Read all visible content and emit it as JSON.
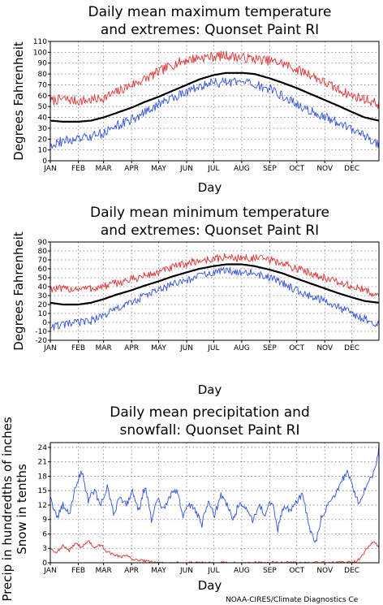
{
  "credit": "NOAA-CIRES/Climate Diagnostics Ce",
  "chart_data": [
    {
      "type": "line",
      "title_lines": [
        "Daily mean maximum temperature",
        "and extremes: Quonset Paint RI"
      ],
      "ylabel": "Degrees Fahrenheit",
      "xlabel": "Day",
      "x_ticks": [
        "JAN",
        "FEB",
        "MAR",
        "APR",
        "MAY",
        "JUN",
        "JUL",
        "AUG",
        "SEP",
        "OCT",
        "NOV",
        "DEC"
      ],
      "ylim": [
        0,
        110
      ],
      "y_ticks": [
        0,
        10,
        20,
        30,
        40,
        50,
        60,
        70,
        80,
        90,
        100,
        110
      ],
      "grid": true,
      "series": [
        {
          "color": "#e03030",
          "days": [
            1,
            15,
            32,
            46,
            60,
            74,
            91,
            105,
            121,
            135,
            152,
            166,
            182,
            196,
            213,
            227,
            244,
            258,
            274,
            288,
            305,
            319,
            335,
            349,
            365
          ],
          "values": [
            55,
            57,
            55,
            56,
            58,
            63,
            70,
            75,
            82,
            88,
            93,
            95,
            96,
            97,
            95,
            94,
            92,
            90,
            84,
            80,
            72,
            66,
            60,
            57,
            52
          ]
        },
        {
          "color": "#000000",
          "days": [
            1,
            15,
            32,
            46,
            60,
            74,
            91,
            105,
            121,
            135,
            152,
            166,
            182,
            196,
            213,
            227,
            244,
            258,
            274,
            288,
            305,
            319,
            335,
            349,
            365
          ],
          "values": [
            37,
            36,
            36,
            37,
            40,
            44,
            49,
            54,
            59,
            64,
            70,
            75,
            79,
            81,
            81,
            80,
            76,
            72,
            67,
            62,
            56,
            51,
            45,
            40,
            37
          ]
        },
        {
          "color": "#3050e0",
          "days": [
            1,
            15,
            32,
            46,
            60,
            74,
            91,
            105,
            121,
            135,
            152,
            166,
            182,
            196,
            213,
            227,
            244,
            258,
            274,
            288,
            305,
            319,
            335,
            349,
            365
          ],
          "values": [
            15,
            18,
            20,
            22,
            26,
            32,
            38,
            44,
            52,
            58,
            64,
            68,
            72,
            72,
            72,
            70,
            66,
            60,
            52,
            46,
            40,
            35,
            30,
            24,
            14
          ]
        }
      ]
    },
    {
      "type": "line",
      "title_lines": [
        "Daily mean minimum temperature",
        "and extremes: Quonset Paint RI"
      ],
      "ylabel": "Degrees Fahrenheit",
      "xlabel": "Day",
      "x_ticks": [
        "JAN",
        "FEB",
        "MAR",
        "APR",
        "MAY",
        "JUN",
        "JUL",
        "AUG",
        "SEP",
        "OCT",
        "NOV",
        "DEC"
      ],
      "ylim": [
        -20,
        90
      ],
      "y_ticks": [
        -20,
        -10,
        0,
        10,
        20,
        30,
        40,
        50,
        60,
        70,
        80,
        90
      ],
      "grid": true,
      "series": [
        {
          "color": "#e03030",
          "days": [
            1,
            15,
            32,
            46,
            60,
            74,
            91,
            105,
            121,
            135,
            152,
            166,
            182,
            196,
            213,
            227,
            244,
            258,
            274,
            288,
            305,
            319,
            335,
            349,
            365
          ],
          "values": [
            38,
            37,
            38,
            38,
            40,
            44,
            48,
            52,
            56,
            61,
            66,
            69,
            71,
            73,
            72,
            72,
            70,
            66,
            60,
            56,
            50,
            45,
            40,
            36,
            30
          ]
        },
        {
          "color": "#000000",
          "days": [
            1,
            15,
            32,
            46,
            60,
            74,
            91,
            105,
            121,
            135,
            152,
            166,
            182,
            196,
            213,
            227,
            244,
            258,
            274,
            288,
            305,
            319,
            335,
            349,
            365
          ],
          "values": [
            22,
            20,
            20,
            22,
            26,
            31,
            36,
            41,
            46,
            51,
            56,
            60,
            63,
            65,
            65,
            63,
            59,
            55,
            49,
            44,
            38,
            33,
            28,
            24,
            22
          ]
        },
        {
          "color": "#3050e0",
          "days": [
            1,
            15,
            32,
            46,
            60,
            74,
            91,
            105,
            121,
            135,
            152,
            166,
            182,
            196,
            213,
            227,
            244,
            258,
            274,
            288,
            305,
            319,
            335,
            349,
            365
          ],
          "values": [
            -5,
            -3,
            0,
            2,
            8,
            15,
            22,
            30,
            36,
            42,
            47,
            52,
            56,
            58,
            57,
            55,
            50,
            44,
            36,
            30,
            24,
            17,
            10,
            4,
            -2
          ]
        }
      ]
    },
    {
      "type": "line",
      "title_lines": [
        "Daily mean precipitation and",
        "snowfall: Quonset Paint RI"
      ],
      "ylabel_lines": [
        "Precip in hundredths of inches",
        "Snow in tenths"
      ],
      "xlabel": "Day",
      "x_ticks": [
        "JAN",
        "FEB",
        "MAR",
        "APR",
        "MAY",
        "JUN",
        "JUL",
        "AUG",
        "SEP",
        "OCT",
        "NOV",
        "DEC"
      ],
      "ylim": [
        0,
        25
      ],
      "y_ticks": [
        0,
        3,
        6,
        9,
        12,
        15,
        18,
        21,
        24
      ],
      "grid": true,
      "series": [
        {
          "color": "#3050e0",
          "days": [
            1,
            8,
            15,
            22,
            29,
            36,
            43,
            50,
            57,
            64,
            71,
            78,
            85,
            92,
            99,
            106,
            113,
            120,
            127,
            134,
            141,
            148,
            155,
            162,
            169,
            176,
            183,
            190,
            197,
            204,
            211,
            218,
            225,
            232,
            239,
            246,
            253,
            260,
            267,
            274,
            281,
            288,
            295,
            302,
            309,
            316,
            323,
            330,
            337,
            344,
            351,
            358,
            362,
            365
          ],
          "values": [
            14,
            9,
            12,
            10,
            16,
            19,
            13,
            15,
            12,
            16,
            10,
            14,
            12,
            15,
            11,
            16,
            9,
            13,
            11,
            14,
            15,
            10,
            12,
            11,
            8,
            13,
            10,
            14,
            12,
            9,
            13,
            11,
            9,
            12,
            10,
            13,
            7,
            12,
            11,
            13,
            14,
            7,
            4,
            10,
            12,
            14,
            17,
            19,
            15,
            12,
            16,
            18,
            20,
            24
          ]
        },
        {
          "color": "#e03030",
          "days": [
            1,
            8,
            15,
            22,
            29,
            36,
            43,
            50,
            57,
            64,
            71,
            78,
            85,
            92,
            99,
            106,
            115,
            125,
            140,
            160,
            200,
            240,
            280,
            300,
            320,
            330,
            340,
            345,
            350,
            355,
            360,
            365
          ],
          "values": [
            3.0,
            2.2,
            3.5,
            2.5,
            4.2,
            3.2,
            4.6,
            3.0,
            3.8,
            2.2,
            1.8,
            1.2,
            1.5,
            0.8,
            0.6,
            0.3,
            0.1,
            0,
            0,
            0,
            0,
            0,
            0,
            0,
            0,
            0.1,
            0.3,
            1.0,
            2.5,
            3.8,
            4.6,
            3.0
          ]
        }
      ]
    }
  ]
}
